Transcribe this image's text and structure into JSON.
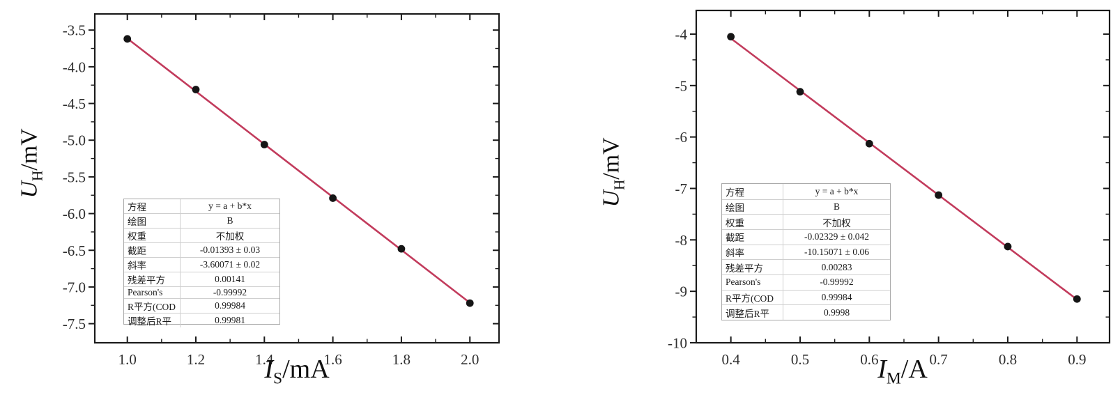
{
  "chart_data": [
    {
      "type": "scatter",
      "title": "",
      "xlabel": "I_S/mA",
      "ylabel": "U_H/mV",
      "x_title": {
        "symbol": "I",
        "sub": "S",
        "unit": "/mA"
      },
      "y_title": {
        "symbol": "U",
        "sub": "H",
        "unit": "/mV"
      },
      "x": [
        1.0,
        1.2,
        1.4,
        1.6,
        1.8,
        2.0
      ],
      "y": [
        -3.62,
        -4.31,
        -5.06,
        -5.79,
        -6.48,
        -7.22
      ],
      "fit": {
        "equation": "y = a + b*x",
        "intercept": -0.01393,
        "slope": -3.60071
      },
      "xlim": [
        0.905,
        2.085
      ],
      "ylim": [
        -7.76,
        -3.28
      ],
      "x_major_ticks": [
        1.0,
        1.2,
        1.4,
        1.6,
        1.8,
        2.0
      ],
      "x_tick_labels": [
        "1.0",
        "1.2",
        "1.4",
        "1.6",
        "1.8",
        "2.0"
      ],
      "x_minor_step": 0.1,
      "y_major_ticks": [
        -3.5,
        -4.0,
        -4.5,
        -5.0,
        -5.5,
        -6.0,
        -6.5,
        -7.0,
        -7.5
      ],
      "y_tick_labels": [
        "-3.5",
        "-4.0",
        "-4.5",
        "-5.0",
        "-5.5",
        "-6.0",
        "-6.5",
        "-7.0",
        "-7.5"
      ],
      "y_minor_step": 0.25,
      "grid": false,
      "legend_position": "none",
      "line_color": "#c23b5c",
      "marker_color": "#151515",
      "axis_color": "#1a1a1a",
      "tick_color": "#2e2e2e",
      "stats": {
        "rows": [
          {
            "label": "方程",
            "value": "y = a + b*x"
          },
          {
            "label": "绘图",
            "value": "B"
          },
          {
            "label": "权重",
            "value": "不加权"
          },
          {
            "label": "截距",
            "value": "-0.01393 ± 0.03"
          },
          {
            "label": "斜率",
            "value": "-3.60071 ± 0.02"
          },
          {
            "label": "残差平方",
            "value": "0.00141"
          },
          {
            "label": "Pearson's",
            "value": "-0.99992"
          },
          {
            "label": "R平方(COD",
            "value": "0.99984"
          },
          {
            "label": "调整后R平",
            "value": "0.99981"
          }
        ]
      }
    },
    {
      "type": "scatter",
      "title": "",
      "xlabel": "I_M/A",
      "ylabel": "U_H/mV",
      "x_title": {
        "symbol": "I",
        "sub": "M",
        "unit": "/A"
      },
      "y_title": {
        "symbol": "U",
        "sub": "H",
        "unit": "/mV"
      },
      "x": [
        0.4,
        0.5,
        0.6,
        0.7,
        0.8,
        0.9
      ],
      "y": [
        -4.05,
        -5.12,
        -6.13,
        -7.13,
        -8.13,
        -9.15
      ],
      "fit": {
        "equation": "y = a + b*x",
        "intercept": -0.02329,
        "slope": -10.15071
      },
      "xlim": [
        0.35,
        0.947
      ],
      "ylim": [
        -10,
        -3.54
      ],
      "x_major_ticks": [
        0.4,
        0.5,
        0.6,
        0.7,
        0.8,
        0.9
      ],
      "x_tick_labels": [
        "0.4",
        "0.5",
        "0.6",
        "0.7",
        "0.8",
        "0.9"
      ],
      "x_minor_step": 0.05,
      "y_major_ticks": [
        -4,
        -5,
        -6,
        -7,
        -8,
        -9,
        -10
      ],
      "y_tick_labels": [
        "-4",
        "-5",
        "-6",
        "-7",
        "-8",
        "-9",
        "-10"
      ],
      "y_minor_step": 0.5,
      "grid": false,
      "legend_position": "none",
      "line_color": "#c23b5c",
      "marker_color": "#151515",
      "axis_color": "#1a1a1a",
      "tick_color": "#2e2e2e",
      "stats": {
        "rows": [
          {
            "label": "方程",
            "value": "y = a + b*x"
          },
          {
            "label": "绘图",
            "value": "B"
          },
          {
            "label": "权重",
            "value": "不加权"
          },
          {
            "label": "截距",
            "value": "-0.02329 ± 0.042"
          },
          {
            "label": "斜率",
            "value": "-10.15071 ± 0.06"
          },
          {
            "label": "残差平方",
            "value": "0.00283"
          },
          {
            "label": "Pearson's",
            "value": "-0.99992"
          },
          {
            "label": "R平方(COD",
            "value": "0.99984"
          },
          {
            "label": "调整后R平",
            "value": "0.9998"
          }
        ]
      }
    }
  ]
}
